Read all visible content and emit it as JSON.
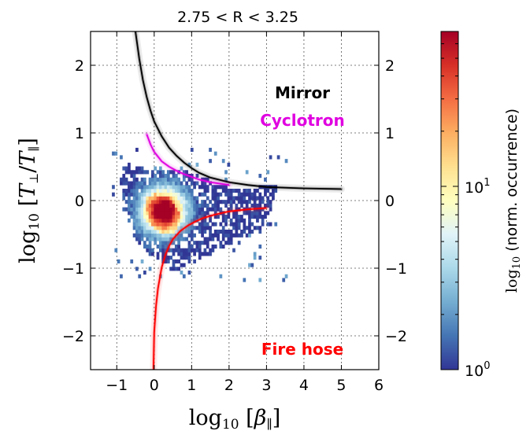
{
  "chart_data": {
    "type": "heatmap",
    "title": "2.75 < R < 3.25",
    "xlabel": "log10[β∥]",
    "ylabel": "log10[T⊥/T∥]",
    "xlim": [
      -1.7,
      6.0
    ],
    "ylim": [
      -2.5,
      2.5
    ],
    "xticks": [
      -1,
      0,
      1,
      2,
      3,
      4,
      5,
      6
    ],
    "yticks": [
      -2,
      -1,
      0,
      1,
      2
    ],
    "grid": true,
    "colorbar": {
      "label": "log10 (norm. occurrence)",
      "scale": "log",
      "range": [
        1,
        70
      ],
      "ticks": [
        {
          "value": 1,
          "label": "10^0"
        },
        {
          "value": 10,
          "label": "10^1"
        }
      ],
      "colormap": [
        "#313695",
        "#4575b4",
        "#74add1",
        "#abd9e9",
        "#e0f3f8",
        "#ffffbf",
        "#fee090",
        "#fdae61",
        "#f46d43",
        "#d73027",
        "#a50026"
      ]
    },
    "distribution": {
      "peak": {
        "x": 0.25,
        "y": -0.15
      },
      "core": [
        [
          -0.25,
          0.05
        ],
        [
          0.0,
          0.1
        ],
        [
          0.4,
          0.05
        ],
        [
          0.7,
          -0.2
        ],
        [
          0.6,
          -0.45
        ],
        [
          0.2,
          -0.5
        ],
        [
          -0.1,
          -0.35
        ],
        [
          -0.2,
          -0.1
        ]
      ],
      "outer": [
        [
          -0.7,
          0.55
        ],
        [
          0.0,
          0.45
        ],
        [
          0.8,
          0.45
        ],
        [
          1.5,
          0.3
        ],
        [
          2.2,
          0.15
        ],
        [
          3.3,
          0.25
        ],
        [
          3.0,
          -0.35
        ],
        [
          2.2,
          -0.6
        ],
        [
          1.3,
          -0.85
        ],
        [
          0.5,
          -1.05
        ],
        [
          -0.1,
          -0.8
        ],
        [
          -0.6,
          -0.5
        ],
        [
          -0.8,
          -0.1
        ],
        [
          -0.9,
          0.3
        ]
      ]
    },
    "thresholds": [
      {
        "name": "Mirror",
        "color": "#000000",
        "x": [
          -0.5,
          -0.4,
          -0.3,
          -0.2,
          -0.1,
          0.0,
          0.2,
          0.4,
          0.6,
          0.8,
          1.0,
          1.2,
          1.5,
          2.0,
          2.5,
          3.0,
          4.0,
          5.0
        ],
        "y": [
          2.5,
          2.1,
          1.78,
          1.53,
          1.33,
          1.17,
          0.95,
          0.78,
          0.66,
          0.56,
          0.48,
          0.41,
          0.34,
          0.27,
          0.23,
          0.2,
          0.18,
          0.17
        ]
      },
      {
        "name": "Cyclotron",
        "color": "#e000e0",
        "x": [
          -0.2,
          -0.1,
          0.0,
          0.2,
          0.4,
          0.6,
          0.8,
          1.0,
          1.2,
          1.5,
          2.0
        ],
        "y": [
          0.98,
          0.83,
          0.72,
          0.58,
          0.5,
          0.44,
          0.39,
          0.35,
          0.31,
          0.27,
          0.23
        ]
      },
      {
        "name": "Fire hose",
        "color": "#ff0000",
        "x": [
          -0.02,
          0.0,
          0.05,
          0.1,
          0.2,
          0.3,
          0.4,
          0.5,
          0.7,
          0.9,
          1.1,
          1.3,
          1.6,
          2.0,
          2.5,
          3.0
        ],
        "y": [
          -2.5,
          -1.95,
          -1.55,
          -1.3,
          -0.99,
          -0.8,
          -0.67,
          -0.57,
          -0.45,
          -0.37,
          -0.31,
          -0.26,
          -0.21,
          -0.16,
          -0.13,
          -0.11
        ]
      }
    ],
    "annotations": [
      {
        "text": "Mirror",
        "color": "#000000"
      },
      {
        "text": "Cyclotron",
        "color": "#e000e0"
      },
      {
        "text": "Fire hose",
        "color": "#ff0000"
      }
    ]
  }
}
